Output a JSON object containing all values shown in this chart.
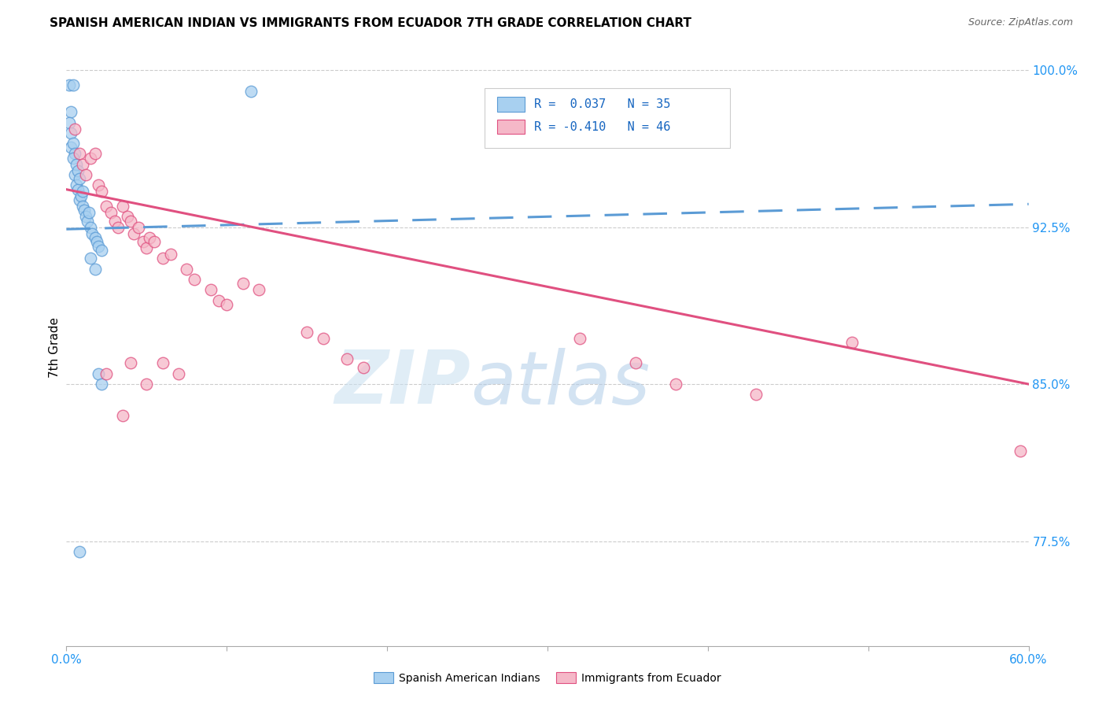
{
  "title": "SPANISH AMERICAN INDIAN VS IMMIGRANTS FROM ECUADOR 7TH GRADE CORRELATION CHART",
  "source": "Source: ZipAtlas.com",
  "ylabel": "7th Grade",
  "x_min": 0.0,
  "x_max": 0.6,
  "y_min": 0.725,
  "y_max": 1.01,
  "x_ticks": [
    0.0,
    0.1,
    0.2,
    0.3,
    0.4,
    0.5,
    0.6
  ],
  "x_tick_labels": [
    "0.0%",
    "",
    "",
    "",
    "",
    "",
    "60.0%"
  ],
  "y_ticks": [
    0.775,
    0.85,
    0.925,
    1.0
  ],
  "y_tick_labels": [
    "77.5%",
    "85.0%",
    "92.5%",
    "100.0%"
  ],
  "color_blue": "#a8d0f0",
  "color_pink": "#f5b8c8",
  "color_line_blue": "#5b9bd5",
  "color_line_pink": "#e05080",
  "watermark_zip": "ZIP",
  "watermark_atlas": "atlas",
  "blue_line_x": [
    0.0,
    0.6
  ],
  "blue_line_y": [
    0.924,
    0.936
  ],
  "pink_line_x": [
    0.0,
    0.6
  ],
  "pink_line_y": [
    0.943,
    0.85
  ],
  "blue_scatter": [
    [
      0.002,
      0.993
    ],
    [
      0.003,
      0.98
    ],
    [
      0.004,
      0.993
    ],
    [
      0.002,
      0.975
    ],
    [
      0.003,
      0.97
    ],
    [
      0.003,
      0.963
    ],
    [
      0.004,
      0.965
    ],
    [
      0.005,
      0.96
    ],
    [
      0.004,
      0.958
    ],
    [
      0.005,
      0.95
    ],
    [
      0.006,
      0.955
    ],
    [
      0.006,
      0.945
    ],
    [
      0.007,
      0.952
    ],
    [
      0.007,
      0.943
    ],
    [
      0.008,
      0.948
    ],
    [
      0.008,
      0.938
    ],
    [
      0.009,
      0.94
    ],
    [
      0.01,
      0.942
    ],
    [
      0.01,
      0.935
    ],
    [
      0.011,
      0.933
    ],
    [
      0.012,
      0.93
    ],
    [
      0.013,
      0.928
    ],
    [
      0.014,
      0.932
    ],
    [
      0.015,
      0.925
    ],
    [
      0.016,
      0.922
    ],
    [
      0.018,
      0.92
    ],
    [
      0.019,
      0.918
    ],
    [
      0.02,
      0.916
    ],
    [
      0.022,
      0.914
    ],
    [
      0.015,
      0.91
    ],
    [
      0.018,
      0.905
    ],
    [
      0.02,
      0.855
    ],
    [
      0.022,
      0.85
    ],
    [
      0.008,
      0.77
    ],
    [
      0.115,
      0.99
    ]
  ],
  "pink_scatter": [
    [
      0.005,
      0.972
    ],
    [
      0.008,
      0.96
    ],
    [
      0.01,
      0.955
    ],
    [
      0.012,
      0.95
    ],
    [
      0.015,
      0.958
    ],
    [
      0.018,
      0.96
    ],
    [
      0.02,
      0.945
    ],
    [
      0.022,
      0.942
    ],
    [
      0.025,
      0.935
    ],
    [
      0.028,
      0.932
    ],
    [
      0.03,
      0.928
    ],
    [
      0.032,
      0.925
    ],
    [
      0.035,
      0.935
    ],
    [
      0.038,
      0.93
    ],
    [
      0.04,
      0.928
    ],
    [
      0.042,
      0.922
    ],
    [
      0.045,
      0.925
    ],
    [
      0.048,
      0.918
    ],
    [
      0.05,
      0.915
    ],
    [
      0.052,
      0.92
    ],
    [
      0.055,
      0.918
    ],
    [
      0.06,
      0.91
    ],
    [
      0.065,
      0.912
    ],
    [
      0.075,
      0.905
    ],
    [
      0.08,
      0.9
    ],
    [
      0.09,
      0.895
    ],
    [
      0.095,
      0.89
    ],
    [
      0.1,
      0.888
    ],
    [
      0.11,
      0.898
    ],
    [
      0.12,
      0.895
    ],
    [
      0.15,
      0.875
    ],
    [
      0.16,
      0.872
    ],
    [
      0.025,
      0.855
    ],
    [
      0.04,
      0.86
    ],
    [
      0.05,
      0.85
    ],
    [
      0.06,
      0.86
    ],
    [
      0.07,
      0.855
    ],
    [
      0.175,
      0.862
    ],
    [
      0.185,
      0.858
    ],
    [
      0.32,
      0.872
    ],
    [
      0.355,
      0.86
    ],
    [
      0.38,
      0.85
    ],
    [
      0.43,
      0.845
    ],
    [
      0.49,
      0.87
    ],
    [
      0.595,
      0.818
    ],
    [
      0.035,
      0.835
    ]
  ]
}
